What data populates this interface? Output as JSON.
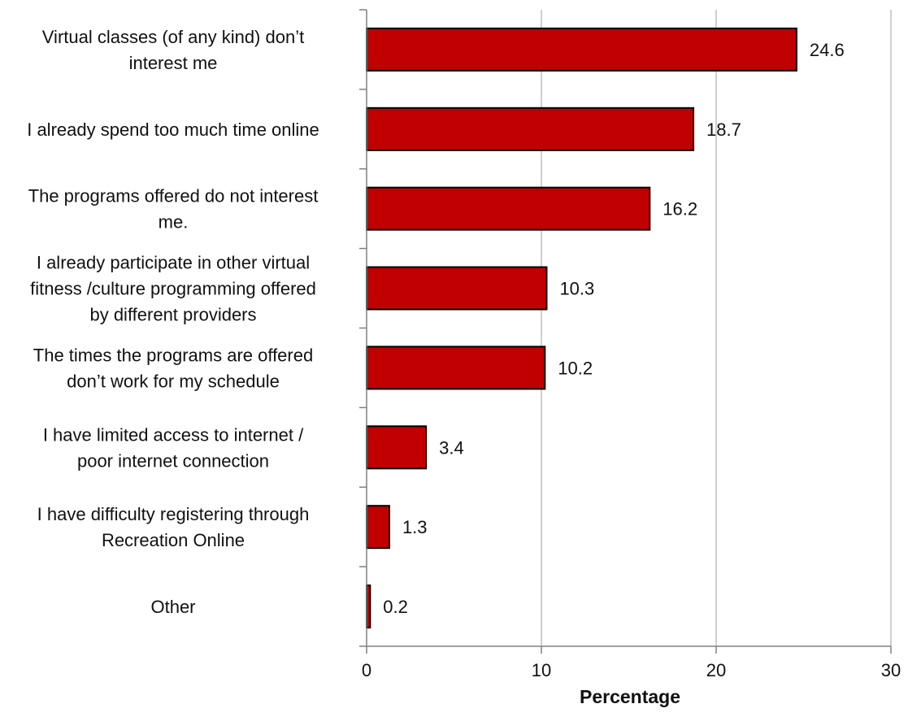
{
  "chart_data": {
    "type": "bar",
    "orientation": "horizontal",
    "categories": [
      [
        "Virtual classes (of any kind) don’t",
        "interest me"
      ],
      [
        "I already spend too much time online"
      ],
      [
        "The programs offered do not interest",
        "me."
      ],
      [
        "I already participate in other virtual",
        "fitness /culture programming offered",
        "by different providers"
      ],
      [
        "The times the programs are offered",
        "don’t work for my schedule"
      ],
      [
        "I have limited access to internet /",
        "poor internet connection"
      ],
      [
        "I have difficulty registering through",
        "Recreation Online"
      ],
      [
        "Other"
      ]
    ],
    "values": [
      24.6,
      18.7,
      16.2,
      10.3,
      10.2,
      3.4,
      1.3,
      0.2
    ],
    "data_labels": [
      "24.6",
      "18.7",
      "16.2",
      "10.3",
      "10.2",
      "3.4",
      "1.3",
      "0.2"
    ],
    "xlabel": "Percentage",
    "ylabel": "",
    "xlim": [
      0,
      30
    ],
    "x_ticks": [
      "0",
      "10",
      "20",
      "30"
    ],
    "grid": "vertical",
    "legend": "none",
    "bar_color": "#C00000",
    "bar_outline": "#000000",
    "grid_color": "#BFBFBF",
    "axis_color": "#808080"
  }
}
